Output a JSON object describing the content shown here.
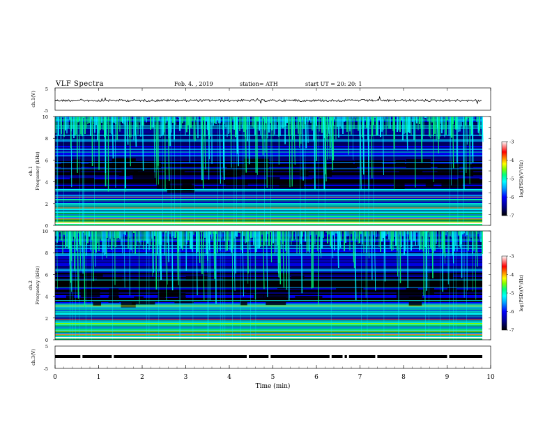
{
  "header": {
    "title": "VLF  Spectra",
    "date": "Feb. 4. , 2019",
    "station": "station= ATH",
    "start": "start  UT  =    20: 20: 1"
  },
  "chart_data": [
    {
      "type": "line",
      "panel": "ch1-voltage",
      "ylabel": "ch.1(V)",
      "ylim": [
        -5,
        5
      ],
      "yticks": [
        "5",
        "-5"
      ],
      "description_values": "noisy trace near 0 V across the full record"
    },
    {
      "type": "heatmap",
      "panel": "ch1-spectrogram",
      "ylabel_top": "ch.1",
      "ylabel": "Frequency  (kHz)",
      "ylim": [
        0,
        10
      ],
      "yticks": [
        "0",
        "2",
        "4",
        "6",
        "8",
        "10"
      ],
      "colorbar": {
        "label": "log(PSD)(V²/Hz)",
        "range": [
          -7,
          -3
        ],
        "ticks": [
          "-3",
          "-4",
          "-5",
          "-6",
          "-7"
        ]
      },
      "colormap": [
        "#000000",
        "#00008a",
        "#0000ff",
        "#00a0ff",
        "#00ffff",
        "#00ff80",
        "#80ff00",
        "#ffff00",
        "#ff8000",
        "#ff0000",
        "#ff8080",
        "#ffffff"
      ]
    },
    {
      "type": "heatmap",
      "panel": "ch2-spectrogram",
      "ylabel_top": "ch.2",
      "ylabel": "Frequency  (kHz)",
      "ylim": [
        0,
        10
      ],
      "yticks": [
        "0",
        "2",
        "4",
        "6",
        "8",
        "10"
      ],
      "colorbar": {
        "label": "log(PSD)(V²/Hz)",
        "range": [
          -7,
          -3
        ],
        "ticks": [
          "-3",
          "-4",
          "-5",
          "-6",
          "-7"
        ]
      }
    },
    {
      "type": "line",
      "panel": "ch3-voltage",
      "ylabel": "ch.3(V)",
      "ylim": [
        -5,
        5
      ],
      "yticks": [
        "5",
        "-5"
      ],
      "xlabel": "Time  (min)",
      "xlim": [
        0,
        10
      ],
      "xticks": [
        "0",
        "1",
        "2",
        "3",
        "4",
        "5",
        "6",
        "7",
        "8",
        "9",
        "10"
      ]
    }
  ]
}
